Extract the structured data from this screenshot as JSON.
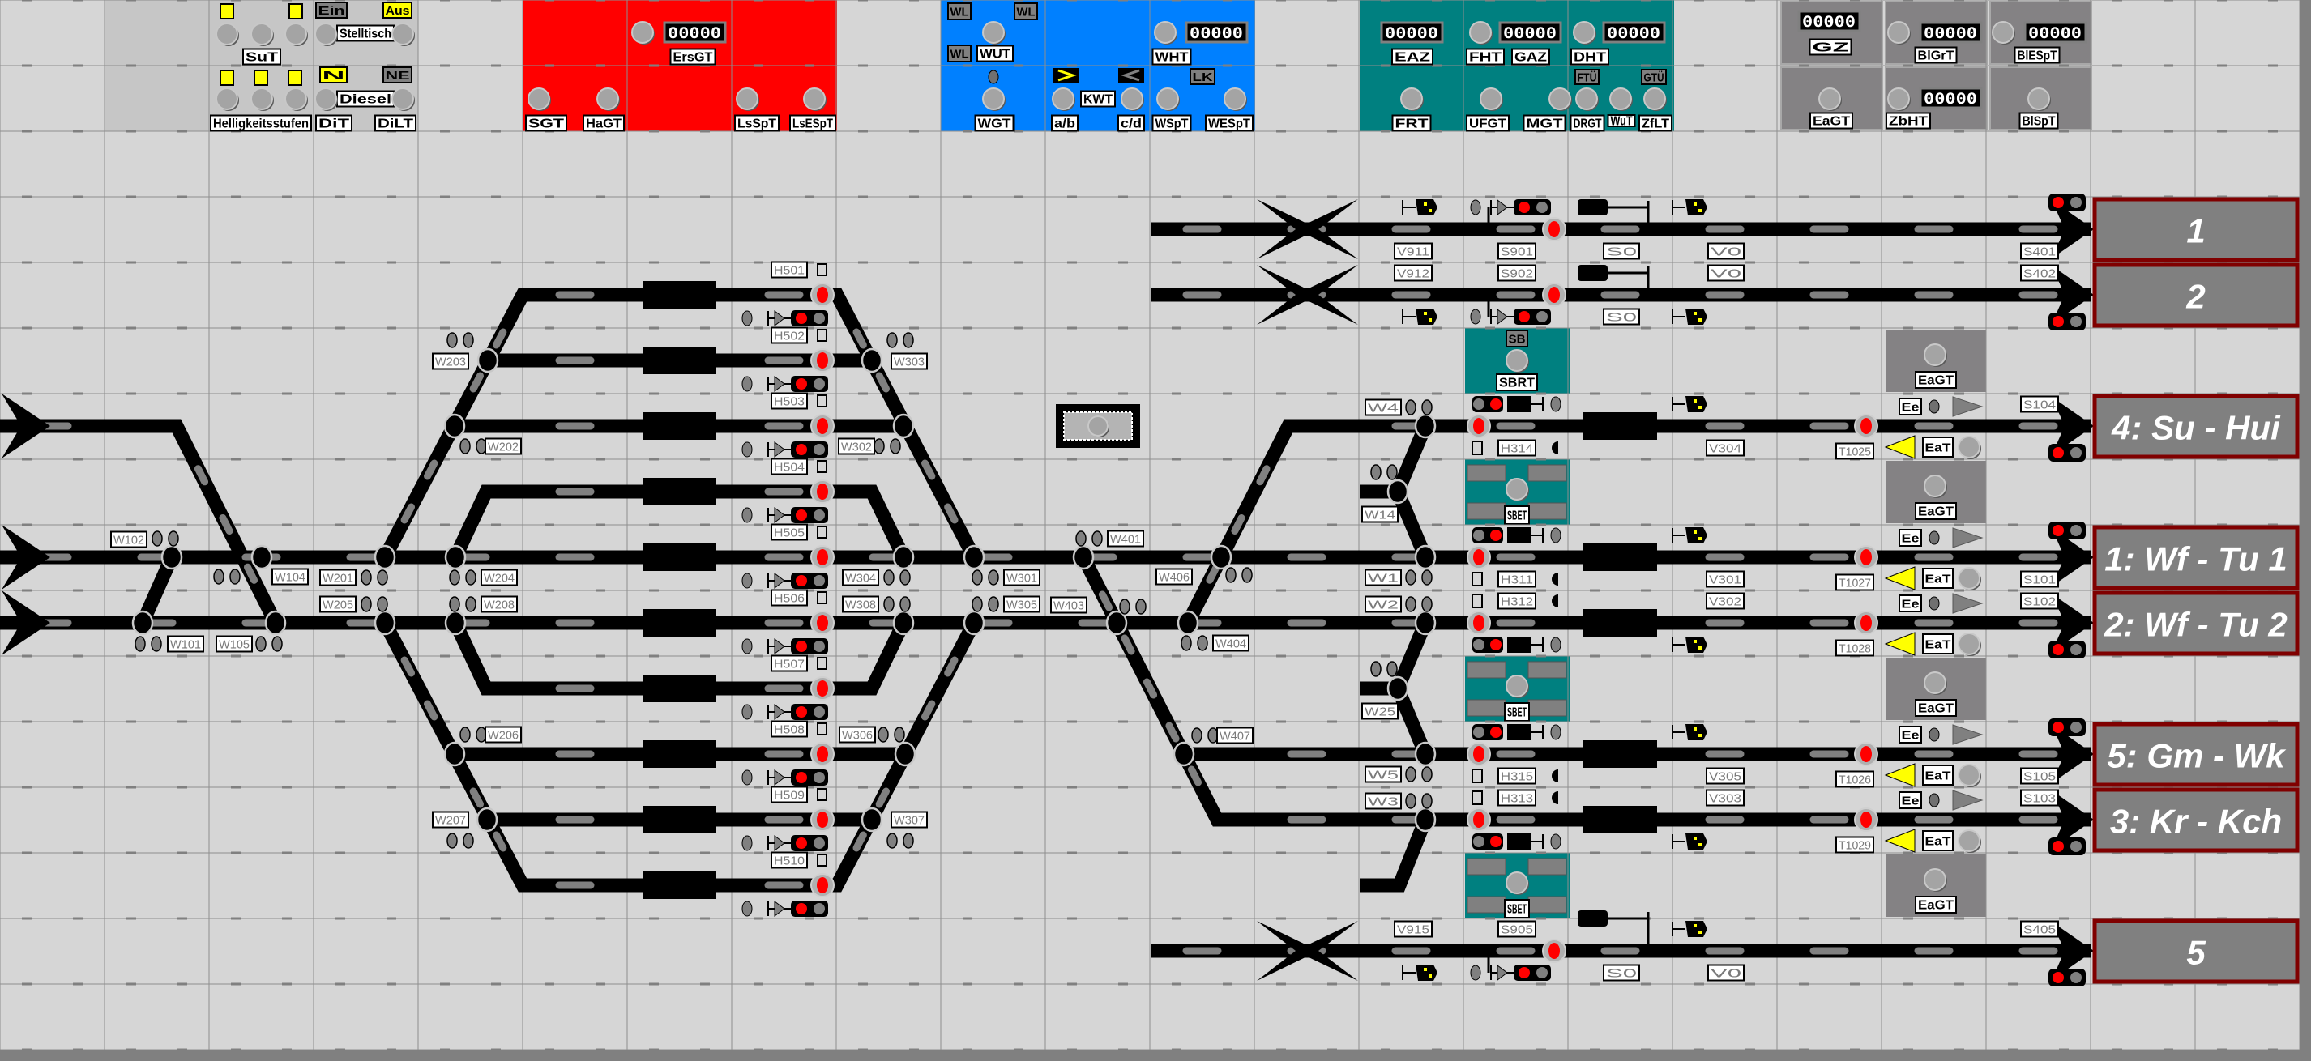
{
  "control_panel": {
    "ein": "Ein",
    "aus": "Aus",
    "stelltisch": "Stelltisch",
    "sut": "SuT",
    "helligkeitsstufen": "Helligkeitsstufen",
    "n": "N",
    "ne": "NE",
    "diesel": "Diesel",
    "dit": "DiT",
    "dilt": "DiLT"
  },
  "red_panel": {
    "sgt": "SGT",
    "hagt": "HaGT",
    "ersgt": "ErsGT",
    "lsspt": "LsSpT",
    "lsespt": "LsESpT"
  },
  "blue_panel": {
    "wl": "WL",
    "wut": "WUT",
    "wgt": "WGT",
    "kwt": "KWT",
    "ab": "a/b",
    "cd": "c/d",
    "wht": "WHT",
    "wspt": "WSpT",
    "wespt": "WESpT",
    "lk": "LK"
  },
  "teal_panel": {
    "eaz": "EAZ",
    "frt": "FRT",
    "fht": "FHT",
    "gaz": "GAZ",
    "ufgt": "UFGT",
    "mgt": "MGT",
    "dht": "DHT",
    "drgt": "DRGT",
    "wut_small": "WuT",
    "zflt": "ZfLT",
    "ftu": "FTÜ",
    "gtu": "GTÜ"
  },
  "grey_panel": {
    "gz": "GZ",
    "eagt": "EaGT",
    "blgrt": "BlGrT",
    "zbht": "ZbHT",
    "blespt": "BlESpT",
    "blspt": "BlSpT"
  },
  "counter_value": "00000",
  "turnouts": [
    "W102",
    "W101",
    "W105",
    "W104",
    "W201",
    "W204",
    "W205",
    "W208",
    "W203",
    "W202",
    "W206",
    "W207",
    "W303",
    "W302",
    "W304",
    "W301",
    "W308",
    "W305",
    "W306",
    "W307",
    "W401",
    "W406",
    "W403",
    "W404",
    "W407",
    "W4",
    "W14",
    "W1",
    "W2",
    "W25",
    "W5",
    "W3"
  ],
  "station_signals": [
    "H501",
    "H502",
    "H503",
    "H504",
    "H505",
    "H506",
    "H507",
    "H508",
    "H509",
    "H510"
  ],
  "right_rows": [
    {
      "h": "H314",
      "v": "V304",
      "t": "T1025",
      "s": "S104",
      "ee": "Ee",
      "eat": "EaT",
      "dest": "4: Su - Hui"
    },
    {
      "h": "H311",
      "v": "V301",
      "t": "T1027",
      "s": "S101",
      "ee": "Ee",
      "eat": "EaT",
      "dest": "1: Wf - Tu 1"
    },
    {
      "h": "H312",
      "v": "V302",
      "t": "T1028",
      "s": "S102",
      "ee": "Ee",
      "eat": "EaT",
      "dest": "2: Wf - Tu 2"
    },
    {
      "h": "H315",
      "v": "V305",
      "t": "T1026",
      "s": "S105",
      "ee": "Ee",
      "eat": "EaT",
      "dest": "5: Gm - Wk"
    },
    {
      "h": "H313",
      "v": "V303",
      "t": "T1029",
      "s": "S103",
      "ee": "Ee",
      "eat": "EaT",
      "dest": "3: Kr - Kch"
    }
  ],
  "through_rows": [
    {
      "v": "V911",
      "s": "S901",
      "s0": "S0",
      "v0": "V0",
      "exit": "S401",
      "dest": "1"
    },
    {
      "v": "V912",
      "s": "S902",
      "s0": "S0",
      "v0": "V0",
      "exit": "S402",
      "dest": "2"
    },
    {
      "v": "V915",
      "s": "S905",
      "s0": "S0",
      "v0": "V0",
      "exit": "S405",
      "dest": "5"
    }
  ],
  "sb": {
    "badge": "SB",
    "rt": "SBRT",
    "et": "SBET"
  },
  "eagt_label": "EaGT",
  "colors": {
    "background": "#d6d6d6",
    "track": "#000000",
    "red_panel": "#ff0000",
    "blue_panel": "#0080ff",
    "teal_panel": "#008080",
    "grey_panel": "#848284",
    "signal_red": "#ff0000",
    "indicator_yellow": "#ffff00",
    "destination_border": "#800000",
    "destination_fill": "#808080"
  }
}
